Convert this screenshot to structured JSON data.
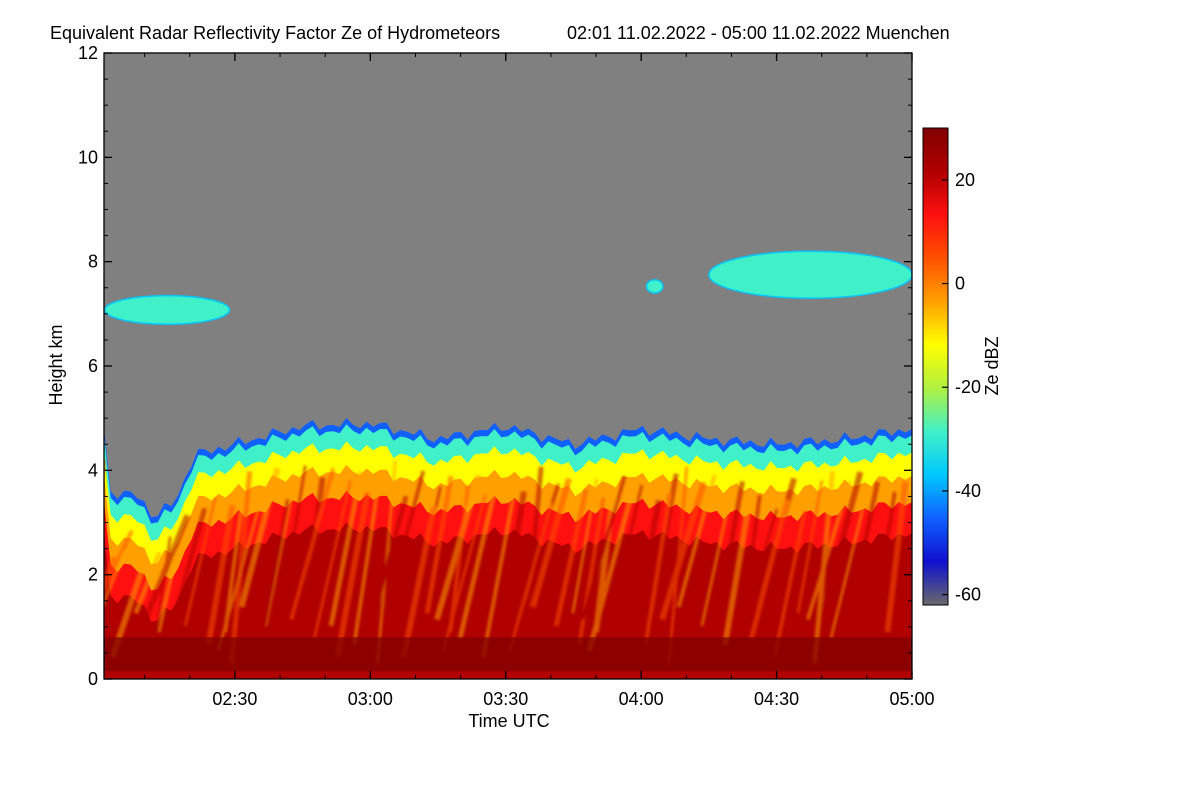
{
  "chart_data": {
    "type": "heatmap",
    "title": "Equivalent Radar Reflectivity Factor Ze of Hydrometeors",
    "subtitle": "02:01 11.02.2022 - 05:00 11.02.2022 Muenchen",
    "xlabel": "Time UTC",
    "ylabel": "Height km",
    "colorbar_label": "Ze dBZ",
    "x_start_hour": 2.0167,
    "x_end_hour": 5.0,
    "xlim_hours": [
      2.0167,
      5.0
    ],
    "ylim": [
      0,
      12
    ],
    "zlim": [
      -62,
      30
    ],
    "x_ticks": [
      {
        "hour": 2.5,
        "label": "02:30"
      },
      {
        "hour": 3.0,
        "label": "03:00"
      },
      {
        "hour": 3.5,
        "label": "03:30"
      },
      {
        "hour": 4.0,
        "label": "04:00"
      },
      {
        "hour": 4.5,
        "label": "04:30"
      },
      {
        "hour": 5.0,
        "label": "05:00"
      }
    ],
    "y_ticks": [
      {
        "value": 0,
        "label": "0"
      },
      {
        "value": 2,
        "label": "2"
      },
      {
        "value": 4,
        "label": "4"
      },
      {
        "value": 6,
        "label": "6"
      },
      {
        "value": 8,
        "label": "8"
      },
      {
        "value": 10,
        "label": "10"
      },
      {
        "value": 12,
        "label": "12"
      }
    ],
    "colorbar_ticks": [
      {
        "value": 20,
        "label": "20"
      },
      {
        "value": 0,
        "label": "0"
      },
      {
        "value": -20,
        "label": "-20"
      },
      {
        "value": -40,
        "label": "-40"
      },
      {
        "value": -60,
        "label": "-60"
      }
    ],
    "colormap": [
      "#6a6a6a",
      "#1010d0",
      "#1060ff",
      "#00c8ff",
      "#40f0c8",
      "#b0f040",
      "#ffff00",
      "#ffa000",
      "#ff5000",
      "#ff1010",
      "#b00000",
      "#800000"
    ],
    "no_data_color": "#808080",
    "low_cloud_top_km": [
      {
        "hour": 2.02,
        "km": 3.6
      },
      {
        "hour": 2.15,
        "km": 3.5
      },
      {
        "hour": 2.2,
        "km": 3.1
      },
      {
        "hour": 2.28,
        "km": 3.4
      },
      {
        "hour": 2.35,
        "km": 4.3
      },
      {
        "hour": 2.5,
        "km": 4.5
      },
      {
        "hour": 2.75,
        "km": 4.85
      },
      {
        "hour": 3.0,
        "km": 4.9
      },
      {
        "hour": 3.25,
        "km": 4.6
      },
      {
        "hour": 3.5,
        "km": 4.85
      },
      {
        "hour": 3.75,
        "km": 4.5
      },
      {
        "hour": 4.0,
        "km": 4.8
      },
      {
        "hour": 4.25,
        "km": 4.6
      },
      {
        "hour": 4.5,
        "km": 4.5
      },
      {
        "hour": 4.75,
        "km": 4.6
      },
      {
        "hour": 5.0,
        "km": 4.8
      }
    ],
    "upper_clouds": [
      {
        "hour_start": 2.02,
        "hour_end": 2.48,
        "km_base": 6.8,
        "km_top": 7.35,
        "Ze_dBZ": -25
      },
      {
        "hour_start": 4.02,
        "hour_end": 4.08,
        "km_base": 7.4,
        "km_top": 7.65,
        "Ze_dBZ": -25
      },
      {
        "hour_start": 4.25,
        "hour_end": 5.0,
        "km_base": 7.3,
        "km_top": 8.2,
        "Ze_dBZ": -25
      }
    ],
    "melting_layer_km": 0.7,
    "melting_layer_Ze_dBZ": 28
  }
}
